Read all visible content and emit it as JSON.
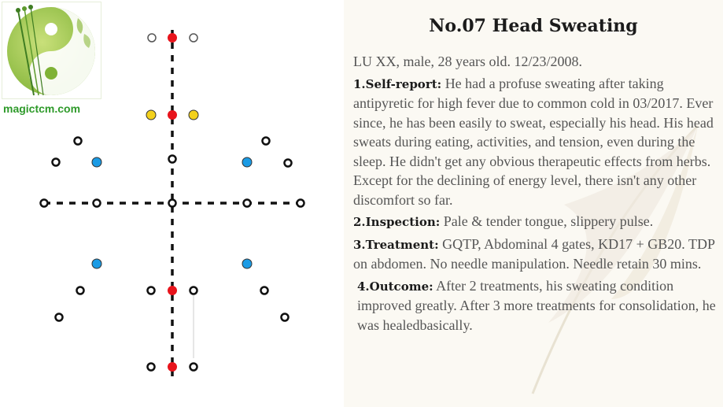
{
  "logo": {
    "url_text": "magictcm.com",
    "text_color": "#2e9a2a",
    "icon": "yin-yang-needles-icon"
  },
  "diagram": {
    "colors": {
      "red": "#e8141c",
      "yellow": "#f3d11c",
      "blue": "#1b9be5",
      "ring": "#111111"
    },
    "icons": [
      "needle-point-red",
      "needle-point-yellow",
      "needle-point-blue",
      "acupoint-ring"
    ]
  },
  "case": {
    "title": "No.07 Head Sweating",
    "intro": "LU XX, male, 28 years old. 12/23/2008.",
    "self_report_label": "1.Self-report:",
    "self_report_text": "He had a profuse sweating after taking antipyretic for high fever due to common cold in 03/2017. Ever since, he has been easily to sweat, especially his head. His head sweats during eating, activities, and tension, even during the sleep. He didn't get any obvious therapeutic effects from herbs. Except for the declining of energy level, there isn't any other discomfort so far.",
    "inspection_label": "2.Inspection:",
    "inspection_text": "Pale & tender tongue, slippery pulse.",
    "treatment_label": "3.Treatment:",
    "treatment_text": "GQTP, Abdominal 4 gates, KD17 + GB20. TDP on abdomen. No needle manipulation. Needle retain 30 mins.",
    "outcome_label": "4.Outcome:",
    "outcome_text": "After 2 treatments, his sweating condition improved greatly. After 3 more treatments for consolidation, he was healedbasically."
  }
}
